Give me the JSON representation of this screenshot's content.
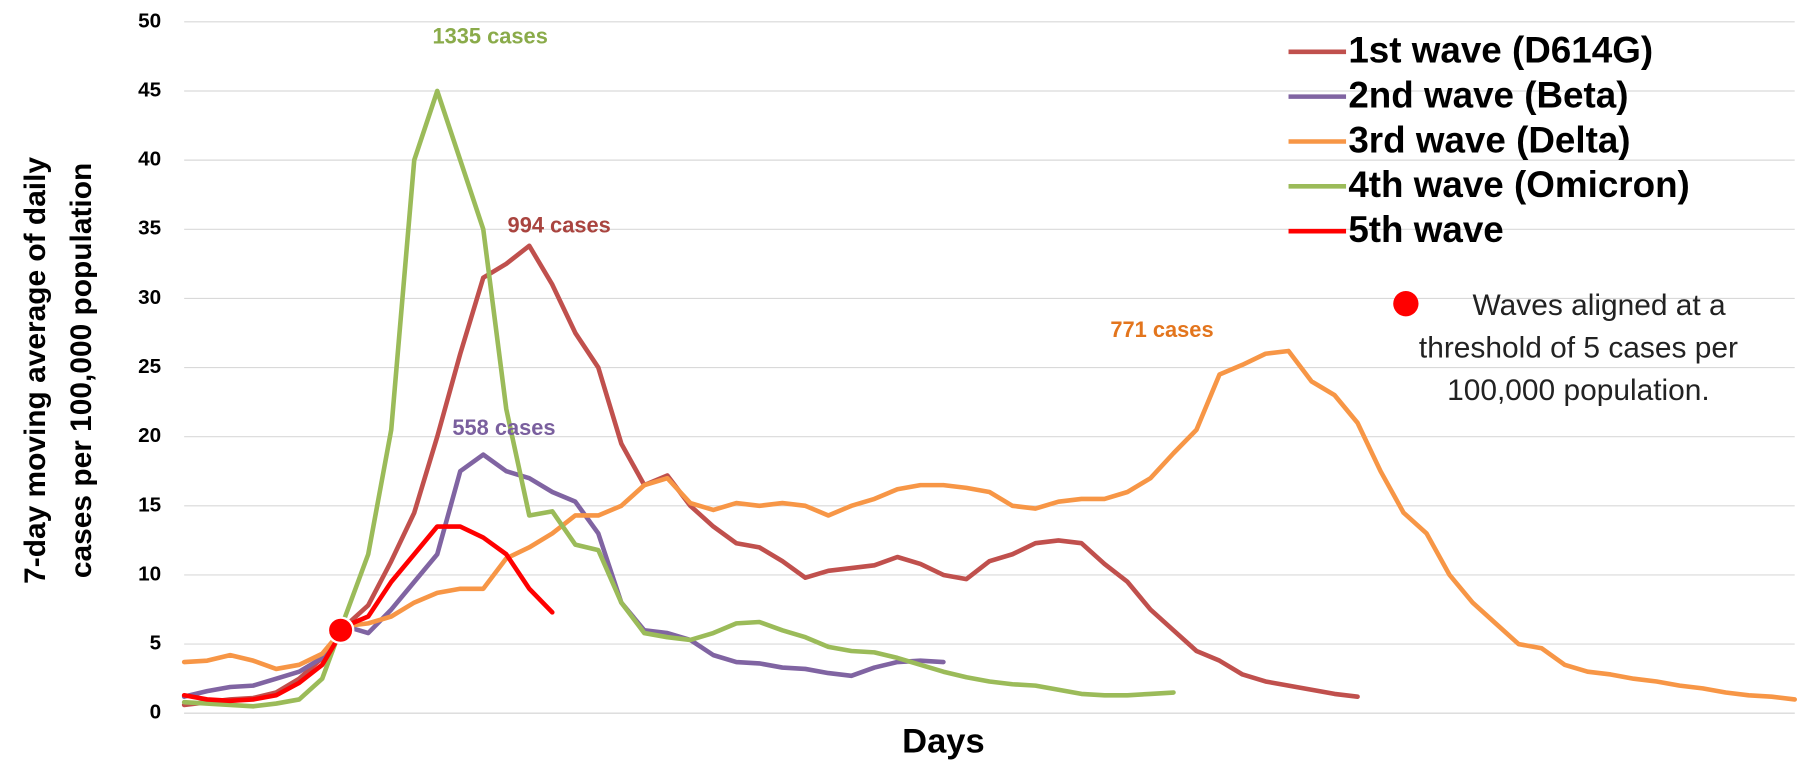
{
  "chart_data": {
    "type": "line",
    "x_label": "Days",
    "y_label": [
      "7-day moving  average of daily",
      "cases per 100,000 population"
    ],
    "categories": [
      null,
      null,
      null,
      null,
      null,
      null,
      null,
      null,
      null,
      null,
      null,
      null,
      null,
      null,
      null,
      null,
      null,
      null,
      null,
      null,
      null,
      null,
      null,
      null,
      null,
      null,
      null,
      null,
      null,
      null,
      null,
      null,
      null,
      null,
      null,
      null,
      null,
      null,
      null,
      null,
      null,
      null,
      null,
      null,
      null,
      null,
      null,
      null,
      null,
      null,
      null,
      null,
      null,
      null,
      null,
      null,
      null,
      null,
      null,
      null,
      null,
      null,
      null,
      null,
      null,
      null,
      null,
      null,
      null,
      null,
      null
    ],
    "ylim": [
      0,
      50
    ],
    "yticks": [
      0,
      5,
      10,
      15,
      20,
      25,
      30,
      35,
      40,
      45,
      50
    ],
    "grid": true,
    "legend": "upper right",
    "series": [
      {
        "name": "1st wave (D614G)",
        "color": "#c0504d",
        "values": [
          0.6,
          0.8,
          1.0,
          1.1,
          1.5,
          2.5,
          4,
          6.3,
          7.8,
          11,
          14.5,
          20,
          26,
          31.5,
          32.5,
          33.8,
          31,
          27.5,
          25,
          19.5,
          16.5,
          17.2,
          15,
          13.5,
          12.3,
          12,
          11,
          9.8,
          10.3,
          10.5,
          10.7,
          11.3,
          10.8,
          10,
          9.7,
          11,
          11.5,
          12.3,
          12.5,
          12.3,
          10.8,
          9.5,
          7.5,
          6,
          4.5,
          3.8,
          2.8,
          2.3,
          2,
          1.7,
          1.4,
          1.2,
          null,
          null,
          null,
          null,
          null,
          null,
          null,
          null,
          null,
          null,
          null,
          null,
          null,
          null,
          null,
          null,
          null,
          null,
          null
        ]
      },
      {
        "name": "2nd wave (Beta)",
        "color": "#8064a2",
        "values": [
          1.2,
          1.6,
          1.9,
          2.0,
          2.5,
          3,
          4,
          6.3,
          5.8,
          7.5,
          9.5,
          11.5,
          17.5,
          18.7,
          17.5,
          17,
          16,
          15.3,
          13,
          8,
          6,
          5.8,
          5.3,
          4.2,
          3.7,
          3.6,
          3.3,
          3.2,
          2.9,
          2.7,
          3.3,
          3.7,
          3.8,
          3.7,
          null,
          null,
          null,
          null,
          null,
          null,
          null,
          null,
          null,
          null,
          null,
          null,
          null,
          null,
          null,
          null,
          null,
          null,
          null,
          null,
          null,
          null,
          null,
          null,
          null,
          null,
          null,
          null,
          null,
          null,
          null,
          null,
          null,
          null,
          null,
          null,
          null
        ]
      },
      {
        "name": "3rd wave (Delta)",
        "color": "#f79646",
        "values": [
          3.7,
          3.8,
          4.2,
          3.8,
          3.2,
          3.5,
          4.3,
          6.3,
          6.5,
          7,
          8,
          8.7,
          9,
          9,
          11.2,
          12,
          13,
          14.3,
          14.3,
          15,
          16.5,
          17,
          15.2,
          14.7,
          15.2,
          15,
          15.2,
          15,
          14.3,
          15,
          15.5,
          16.2,
          16.5,
          16.5,
          16.3,
          16,
          15,
          14.8,
          15.3,
          15.5,
          15.5,
          16,
          17,
          18.8,
          20.5,
          24.5,
          25.2,
          26,
          26.2,
          24,
          23,
          21,
          17.5,
          14.5,
          13,
          10,
          8,
          6.5,
          5,
          4.7,
          3.5,
          3,
          2.8,
          2.5,
          2.3,
          2,
          1.8,
          1.5,
          1.3,
          1.2,
          1.0
        ]
      },
      {
        "name": "4th wave (Omicron)",
        "color": "#9bbb59",
        "values": [
          0.8,
          0.7,
          0.6,
          0.5,
          0.7,
          1,
          2.5,
          7,
          11.5,
          20.5,
          40,
          45,
          40,
          35,
          22,
          14.3,
          14.6,
          12.2,
          11.8,
          8,
          5.8,
          5.5,
          5.3,
          5.8,
          6.5,
          6.6,
          6,
          5.5,
          4.8,
          4.5,
          4.4,
          4,
          3.5,
          3,
          2.6,
          2.3,
          2.1,
          2,
          1.7,
          1.4,
          1.3,
          1.3,
          1.4,
          1.5,
          null,
          null,
          null,
          null,
          null,
          null,
          null,
          null,
          null,
          null,
          null,
          null,
          null,
          null,
          null,
          null,
          null,
          null,
          null,
          null,
          null,
          null,
          null,
          null,
          null,
          null,
          null
        ]
      },
      {
        "name": "5th wave",
        "color": "#ff0000",
        "values": [
          1.3,
          1.0,
          0.9,
          1.0,
          1.3,
          2.2,
          3.5,
          6.3,
          7,
          9.5,
          11.5,
          13.5,
          13.5,
          12.7,
          11.5,
          9,
          7.3,
          null,
          null,
          null,
          null,
          null,
          null,
          null,
          null,
          null,
          null,
          null,
          null,
          null,
          null,
          null,
          null,
          null,
          null,
          null,
          null,
          null,
          null,
          null,
          null,
          null,
          null,
          null,
          null,
          null,
          null,
          null,
          null,
          null,
          null,
          null,
          null,
          null,
          null,
          null,
          null,
          null,
          null,
          null,
          null,
          null,
          null,
          null,
          null,
          null,
          null,
          null,
          null,
          null,
          null
        ]
      }
    ],
    "marker": {
      "value": 6,
      "color": "#ff0000"
    },
    "note": [
      "Waves aligned at a",
      "threshold of 5 cases per",
      "100,000 population."
    ],
    "annotations": [
      {
        "text": "1335 cases",
        "color": "#8aab4a"
      },
      {
        "text": "994 cases",
        "color": "#a9443f"
      },
      {
        "text": "558 cases",
        "color": "#7a5f9e"
      },
      {
        "text": "771 cases",
        "color": "#e3751d"
      }
    ]
  }
}
